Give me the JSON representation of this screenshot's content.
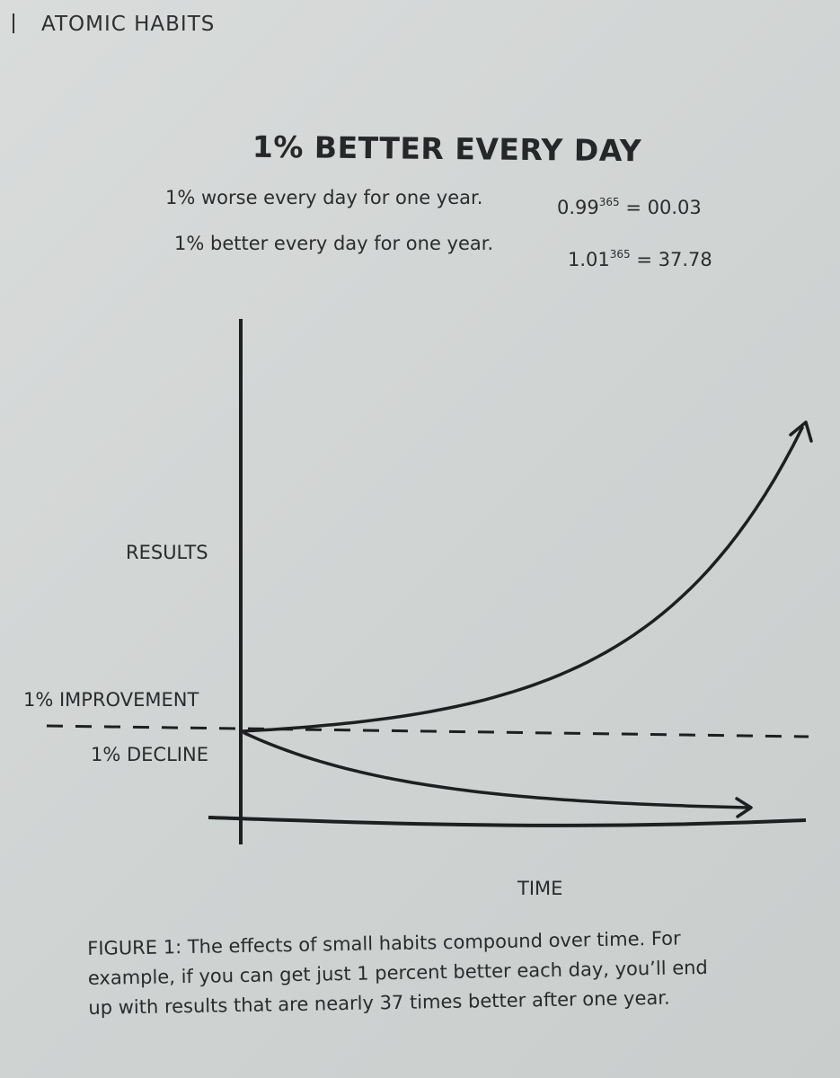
{
  "running_head": "ATOMIC HABITS",
  "figure": {
    "title": "1% BETTER EVERY DAY",
    "formulas": [
      {
        "text": "1% worse every day for one year.",
        "base": "0.99",
        "exponent": "365",
        "result": "= 00.03"
      },
      {
        "text": "1% better every day for one year.",
        "base": "1.01",
        "exponent": "365",
        "result": "= 37.78"
      }
    ],
    "caption_lines": [
      "FIGURE 1: The effects of small habits compound over time. For",
      "example, if you can get just 1 percent better each day, you’ll end",
      "up with results that are nearly 37 times better after one year."
    ]
  },
  "chart_data": {
    "type": "line",
    "xlabel": "TIME",
    "ylabel": "RESULTS",
    "y_markers": [
      "1% IMPROVEMENT",
      "1% DECLINE"
    ],
    "baseline": "dashed",
    "series": [
      {
        "formula": "1.01^t",
        "x": [
          0,
          365
        ],
        "y": [
          1,
          37.78
        ]
      },
      {
        "formula": "0.99^t",
        "x": [
          0,
          365
        ],
        "y": [
          1,
          0.03
        ]
      }
    ]
  }
}
